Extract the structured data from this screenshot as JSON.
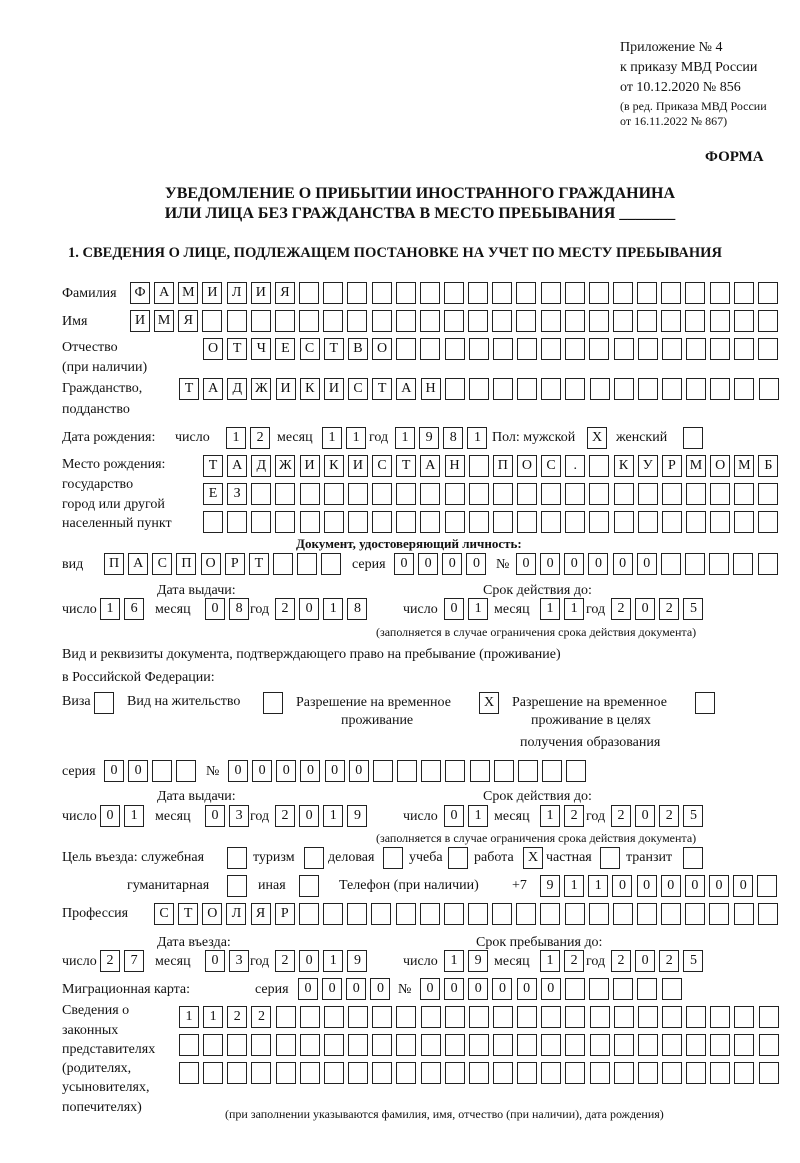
{
  "header": {
    "appendix": "Приложение № 4",
    "order": "к приказу МВД России",
    "order_date": "от 10.12.2020 № 856",
    "edition1": "(в ред. Приказа МВД России",
    "edition2": "от 16.11.2022 № 867)",
    "form": "ФОРМА",
    "title1": "УВЕДОМЛЕНИЕ О ПРИБЫТИИ ИНОСТРАННОГО ГРАЖДАНИНА",
    "title2": "ИЛИ ЛИЦА БЕЗ ГРАЖДАНСТВА В МЕСТО ПРЕБЫВАНИЯ _______",
    "section1": "1. СВЕДЕНИЯ О ЛИЦЕ, ПОДЛЕЖАЩЕМ ПОСТАНОВКЕ НА УЧЕТ ПО МЕСТУ ПРЕБЫВАНИЯ"
  },
  "labels": {
    "surname": "Фамилия",
    "name": "Имя",
    "patronymic": "Отчество",
    "patronymic2": "(при наличии)",
    "citizenship": "Гражданство,",
    "citizenship2": "подданство",
    "birth_date": "Дата рождения:",
    "day": "число",
    "month": "месяц",
    "year": "год",
    "sex": "Пол: мужской",
    "female": "женский",
    "birthplace1": "Место рождения:",
    "birthplace2": "государство",
    "birthplace3": "город или другой",
    "birthplace4": "населенный пункт",
    "id_doc": "Документ, удостоверяющий личность:",
    "kind": "вид",
    "series": "серия",
    "number": "№",
    "issued": "Дата выдачи:",
    "valid": "Срок действия до:",
    "valid_note": "(заполняется в случае ограничения срока действия документа)",
    "permit1": "Вид и реквизиты документа, подтверждающего право на пребывание (проживание)",
    "permit2": "в Российской Федерации:",
    "visa": "Виза",
    "residence": "Вид на жительство",
    "trp1": "Разрешение на временное",
    "trp2": "проживание",
    "trpe1": "Разрешение на временное",
    "trpe2": "проживание в целях",
    "trpe3": "получения образования",
    "purpose": "Цель въезда: служебная",
    "tourism": "туризм",
    "business": "деловая",
    "study": "учеба",
    "work": "работа",
    "private": "частная",
    "transit": "транзит",
    "humanitarian": "гуманитарная",
    "other": "иная",
    "phone": "Телефон (при наличии)",
    "phone_prefix": "+7",
    "profession": "Профессия",
    "entry_date": "Дата въезда:",
    "stay_until": "Срок пребывания до:",
    "migration_card": "Миграционная карта:",
    "reps1": "Сведения о",
    "reps2": "законных",
    "reps3": "представителях",
    "reps4": "(родителях,",
    "reps5": "усыновителях,",
    "reps6": "попечителях)",
    "reps_note": "(при заполнении указываются фамилия, имя, отчество (при наличии), дата рождения)"
  },
  "fields": {
    "surname": [
      "Ф",
      "А",
      "М",
      "И",
      "Л",
      "И",
      "Я",
      "",
      "",
      "",
      "",
      "",
      "",
      "",
      "",
      "",
      "",
      "",
      "",
      "",
      "",
      "",
      "",
      "",
      "",
      "",
      ""
    ],
    "name": [
      "И",
      "М",
      "Я",
      "",
      "",
      "",
      "",
      "",
      "",
      "",
      "",
      "",
      "",
      "",
      "",
      "",
      "",
      "",
      "",
      "",
      "",
      "",
      "",
      "",
      "",
      "",
      ""
    ],
    "patronymic": [
      "О",
      "Т",
      "Ч",
      "Е",
      "С",
      "Т",
      "В",
      "О",
      "",
      "",
      "",
      "",
      "",
      "",
      "",
      "",
      "",
      "",
      "",
      "",
      "",
      "",
      "",
      ""
    ],
    "citizenship": [
      "Т",
      "А",
      "Д",
      "Ж",
      "И",
      "К",
      "И",
      "С",
      "Т",
      "А",
      "Н",
      "",
      "",
      "",
      "",
      "",
      "",
      "",
      "",
      "",
      "",
      "",
      "",
      "",
      ""
    ],
    "birth_day": [
      "1",
      "2"
    ],
    "birth_month": [
      "1",
      "1"
    ],
    "birth_year": [
      "1",
      "9",
      "8",
      "1"
    ],
    "sex_male": [
      "X"
    ],
    "sex_female": [
      ""
    ],
    "birthplace1": [
      "Т",
      "А",
      "Д",
      "Ж",
      "И",
      "К",
      "И",
      "С",
      "Т",
      "А",
      "Н",
      "",
      "П",
      "О",
      "С",
      ".",
      "",
      "К",
      "У",
      "Р",
      "М",
      "О",
      "М",
      "Б"
    ],
    "birthplace2": [
      "Е",
      "З",
      "",
      "",
      "",
      "",
      "",
      "",
      "",
      "",
      "",
      "",
      "",
      "",
      "",
      "",
      "",
      "",
      "",
      "",
      "",
      "",
      "",
      ""
    ],
    "birthplace3": [
      "",
      "",
      "",
      "",
      "",
      "",
      "",
      "",
      "",
      "",
      "",
      "",
      "",
      "",
      "",
      "",
      "",
      "",
      "",
      "",
      "",
      "",
      "",
      ""
    ],
    "doc_kind": [
      "П",
      "А",
      "С",
      "П",
      "О",
      "Р",
      "Т",
      "",
      "",
      ""
    ],
    "doc_series": [
      "0",
      "0",
      "0",
      "0"
    ],
    "doc_number": [
      "0",
      "0",
      "0",
      "0",
      "0",
      "0",
      "",
      "",
      "",
      "",
      ""
    ],
    "doc_issued_day": [
      "1",
      "6"
    ],
    "doc_issued_month": [
      "0",
      "8"
    ],
    "doc_issued_year": [
      "2",
      "0",
      "1",
      "8"
    ],
    "doc_valid_day": [
      "0",
      "1"
    ],
    "doc_valid_month": [
      "1",
      "1"
    ],
    "doc_valid_year": [
      "2",
      "0",
      "2",
      "5"
    ],
    "permit_visa": [
      ""
    ],
    "permit_residence": [
      ""
    ],
    "permit_trp": [
      "X"
    ],
    "permit_trpe": [
      ""
    ],
    "permit_series": [
      "0",
      "0",
      "",
      ""
    ],
    "permit_number": [
      "0",
      "0",
      "0",
      "0",
      "0",
      "0",
      "",
      "",
      "",
      "",
      "",
      "",
      "",
      "",
      ""
    ],
    "permit_issued_day": [
      "0",
      "1"
    ],
    "permit_issued_month": [
      "0",
      "3"
    ],
    "permit_issued_year": [
      "2",
      "0",
      "1",
      "9"
    ],
    "permit_valid_day": [
      "0",
      "1"
    ],
    "permit_valid_month": [
      "1",
      "2"
    ],
    "permit_valid_year": [
      "2",
      "0",
      "2",
      "5"
    ],
    "purpose_service": [
      ""
    ],
    "purpose_tourism": [
      ""
    ],
    "purpose_business": [
      ""
    ],
    "purpose_study": [
      ""
    ],
    "purpose_work": [
      "X"
    ],
    "purpose_private": [
      ""
    ],
    "purpose_transit": [
      ""
    ],
    "purpose_humanitarian": [
      ""
    ],
    "purpose_other": [
      ""
    ],
    "phone": [
      "9",
      "1",
      "1",
      "0",
      "0",
      "0",
      "0",
      "0",
      "0",
      ""
    ],
    "profession": [
      "С",
      "Т",
      "О",
      "Л",
      "Я",
      "Р",
      "",
      "",
      "",
      "",
      "",
      "",
      "",
      "",
      "",
      "",
      "",
      "",
      "",
      "",
      "",
      "",
      "",
      "",
      "",
      ""
    ],
    "entry_day": [
      "2",
      "7"
    ],
    "entry_month": [
      "0",
      "3"
    ],
    "entry_year": [
      "2",
      "0",
      "1",
      "9"
    ],
    "stay_day": [
      "1",
      "9"
    ],
    "stay_month": [
      "1",
      "2"
    ],
    "stay_year": [
      "2",
      "0",
      "2",
      "5"
    ],
    "mc_series": [
      "0",
      "0",
      "0",
      "0"
    ],
    "mc_number": [
      "0",
      "0",
      "0",
      "0",
      "0",
      "0",
      "",
      "",
      "",
      "",
      ""
    ],
    "reps1": [
      "1",
      "1",
      "2",
      "2",
      "",
      "",
      "",
      "",
      "",
      "",
      "",
      "",
      "",
      "",
      "",
      "",
      "",
      "",
      "",
      "",
      "",
      "",
      "",
      "",
      ""
    ],
    "reps2": [
      "",
      "",
      "",
      "",
      "",
      "",
      "",
      "",
      "",
      "",
      "",
      "",
      "",
      "",
      "",
      "",
      "",
      "",
      "",
      "",
      "",
      "",
      "",
      "",
      ""
    ],
    "reps3": [
      "",
      "",
      "",
      "",
      "",
      "",
      "",
      "",
      "",
      "",
      "",
      "",
      "",
      "",
      "",
      "",
      "",
      "",
      "",
      "",
      "",
      "",
      "",
      "",
      ""
    ]
  }
}
